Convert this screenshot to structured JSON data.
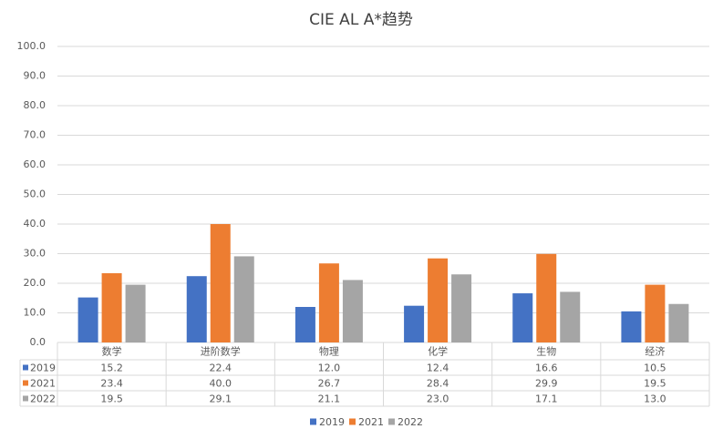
{
  "chart_data": {
    "type": "bar",
    "title": "CIE AL A*趋势",
    "categories": [
      "数学",
      "进阶数学",
      "物理",
      "化学",
      "生物",
      "经济"
    ],
    "series": [
      {
        "name": "2019",
        "color": "#4472c4",
        "values": [
          15.2,
          22.4,
          12.0,
          12.4,
          16.6,
          10.5
        ],
        "value_labels": [
          "15.2",
          "22.4",
          "12.0",
          "12.4",
          "16.6",
          "10.5"
        ]
      },
      {
        "name": "2021",
        "color": "#ed7d31",
        "values": [
          23.4,
          40.0,
          26.7,
          28.4,
          29.9,
          19.5
        ],
        "value_labels": [
          "23.4",
          "40.0",
          "26.7",
          "28.4",
          "29.9",
          "19.5"
        ]
      },
      {
        "name": "2022",
        "color": "#a5a5a5",
        "values": [
          19.5,
          29.1,
          21.1,
          23.0,
          17.1,
          13.0
        ],
        "value_labels": [
          "19.5",
          "29.1",
          "21.1",
          "23.0",
          "17.1",
          "13.0"
        ]
      }
    ],
    "ylim": [
      0,
      100
    ],
    "yticks": [
      {
        "value": 0,
        "label": "0.0"
      },
      {
        "value": 10,
        "label": "10.0"
      },
      {
        "value": 20,
        "label": "20.0"
      },
      {
        "value": 30,
        "label": "30.0"
      },
      {
        "value": 40,
        "label": "40.0"
      },
      {
        "value": 50,
        "label": "50.0"
      },
      {
        "value": 60,
        "label": "60.0"
      },
      {
        "value": 70,
        "label": "70.0"
      },
      {
        "value": 80,
        "label": "80.0"
      },
      {
        "value": 90,
        "label": "90.0"
      },
      {
        "value": 100,
        "label": "100.0"
      }
    ],
    "grid": true
  }
}
